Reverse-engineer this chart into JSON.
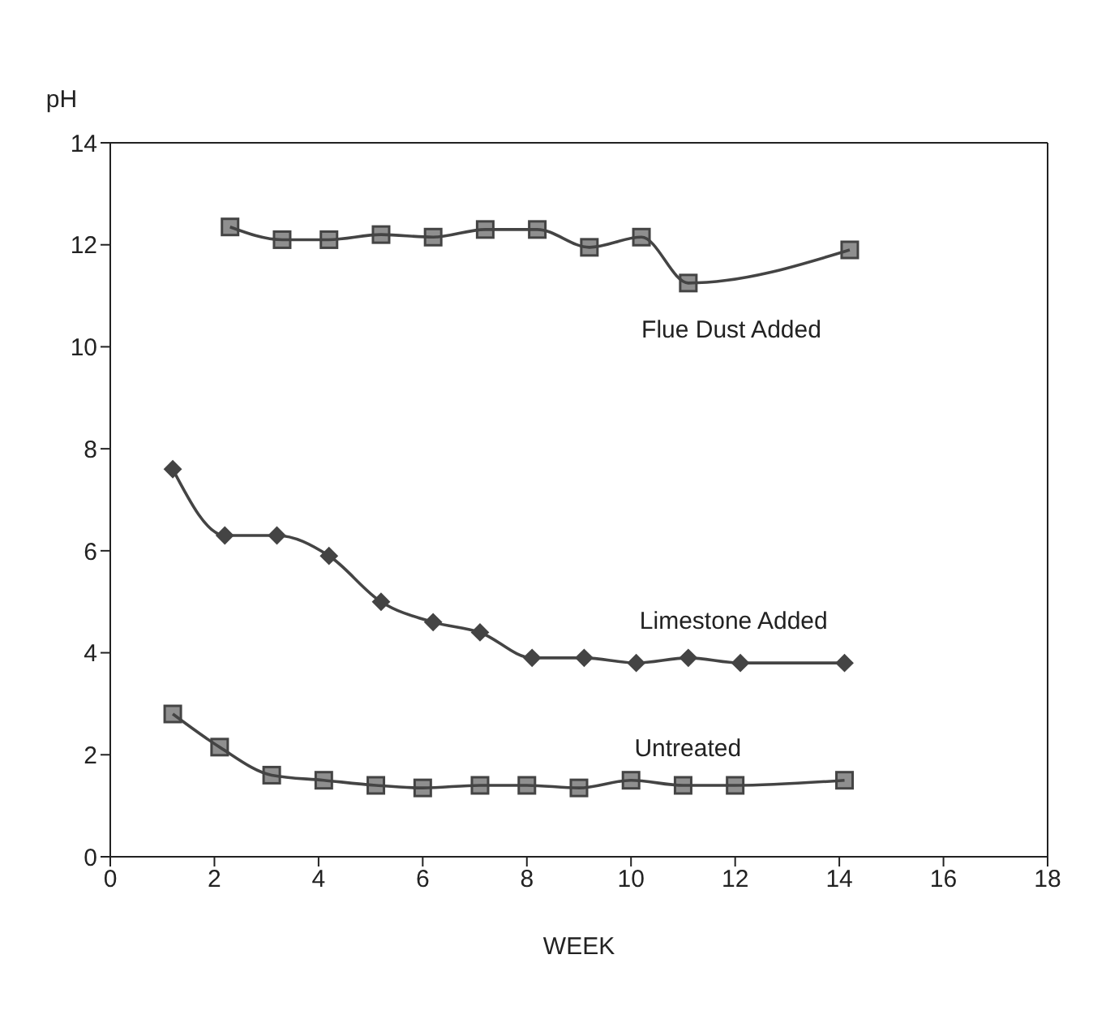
{
  "chart_data": {
    "type": "line",
    "xlabel": "WEEK",
    "ylabel": "pH",
    "xlim": [
      0,
      18
    ],
    "xticks": [
      0,
      2,
      4,
      6,
      8,
      10,
      12,
      14,
      16,
      18
    ],
    "ylim": [
      0,
      14
    ],
    "yticks": [
      0,
      2,
      4,
      6,
      8,
      10,
      12,
      14
    ],
    "marker": "square",
    "line_style": "solid",
    "series": [
      {
        "name": "Flue Dust Added",
        "color": "#444444",
        "marker": "square",
        "x": [
          2.3,
          3.3,
          4.2,
          5.2,
          6.2,
          7.2,
          8.2,
          9.2,
          10.2,
          11.1,
          14.2
        ],
        "values": [
          12.35,
          12.1,
          12.1,
          12.2,
          12.15,
          12.3,
          12.3,
          11.95,
          12.15,
          11.25,
          11.9
        ]
      },
      {
        "name": "Limestone Added",
        "color": "#444444",
        "marker": "diamond",
        "x": [
          1.2,
          2.2,
          3.2,
          4.2,
          5.2,
          6.2,
          7.1,
          8.1,
          9.1,
          10.1,
          11.1,
          12.1,
          14.1
        ],
        "values": [
          7.6,
          6.3,
          6.3,
          5.9,
          5.0,
          4.6,
          4.4,
          3.9,
          3.9,
          3.8,
          3.9,
          3.8,
          3.8
        ]
      },
      {
        "name": "Untreated",
        "color": "#444444",
        "marker": "square",
        "x": [
          1.2,
          2.1,
          3.1,
          4.1,
          5.1,
          6.0,
          7.1,
          8.0,
          9.0,
          10.0,
          11.0,
          12.0,
          14.1
        ],
        "values": [
          2.8,
          2.15,
          1.6,
          1.5,
          1.4,
          1.35,
          1.4,
          1.4,
          1.35,
          1.5,
          1.4,
          1.4,
          1.5
        ]
      }
    ]
  }
}
